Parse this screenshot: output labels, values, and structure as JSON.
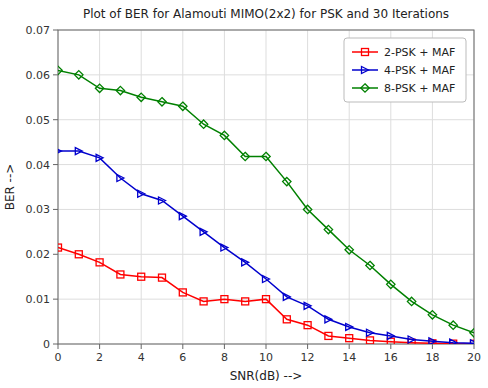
{
  "chart_data": {
    "type": "line",
    "title": "Plot of BER for Alamouti MIMO(2x2) for PSK and 30 Iterations",
    "xlabel": "SNR(dB) -->",
    "ylabel": "BER -->",
    "x": [
      0,
      1,
      2,
      3,
      4,
      5,
      6,
      7,
      8,
      9,
      10,
      11,
      12,
      13,
      14,
      15,
      16,
      17,
      18,
      19,
      20
    ],
    "series": [
      {
        "name": "2-PSK + MAF",
        "color": "#ff0000",
        "marker": "square",
        "values": [
          0.0215,
          0.02,
          0.0182,
          0.0155,
          0.015,
          0.0148,
          0.0115,
          0.0095,
          0.01,
          0.0095,
          0.01,
          0.0055,
          0.0042,
          0.0018,
          0.0013,
          0.0008,
          0.0005,
          0.0003,
          0.00015,
          8e-05,
          4e-05
        ]
      },
      {
        "name": "4-PSK + MAF",
        "color": "#0000cd",
        "marker": "triangle-right",
        "values": [
          0.043,
          0.043,
          0.0415,
          0.037,
          0.0335,
          0.032,
          0.0285,
          0.025,
          0.0215,
          0.0182,
          0.0145,
          0.0105,
          0.0085,
          0.0055,
          0.0038,
          0.0025,
          0.0018,
          0.001,
          0.0006,
          0.0003,
          0.00015
        ]
      },
      {
        "name": "8-PSK + MAF",
        "color": "#008000",
        "marker": "diamond",
        "values": [
          0.061,
          0.06,
          0.057,
          0.0565,
          0.055,
          0.054,
          0.053,
          0.049,
          0.0465,
          0.0418,
          0.0418,
          0.0362,
          0.03,
          0.0255,
          0.021,
          0.0175,
          0.0133,
          0.0095,
          0.0065,
          0.0042,
          0.0025
        ]
      }
    ],
    "xlim": [
      0,
      20
    ],
    "ylim": [
      0,
      0.07
    ],
    "xticks": [
      0,
      2,
      4,
      6,
      8,
      10,
      12,
      14,
      16,
      18,
      20
    ],
    "yticks": [
      0,
      0.01,
      0.02,
      0.03,
      0.04,
      0.05,
      0.06,
      0.07
    ],
    "grid": true,
    "legend": "upper right"
  }
}
